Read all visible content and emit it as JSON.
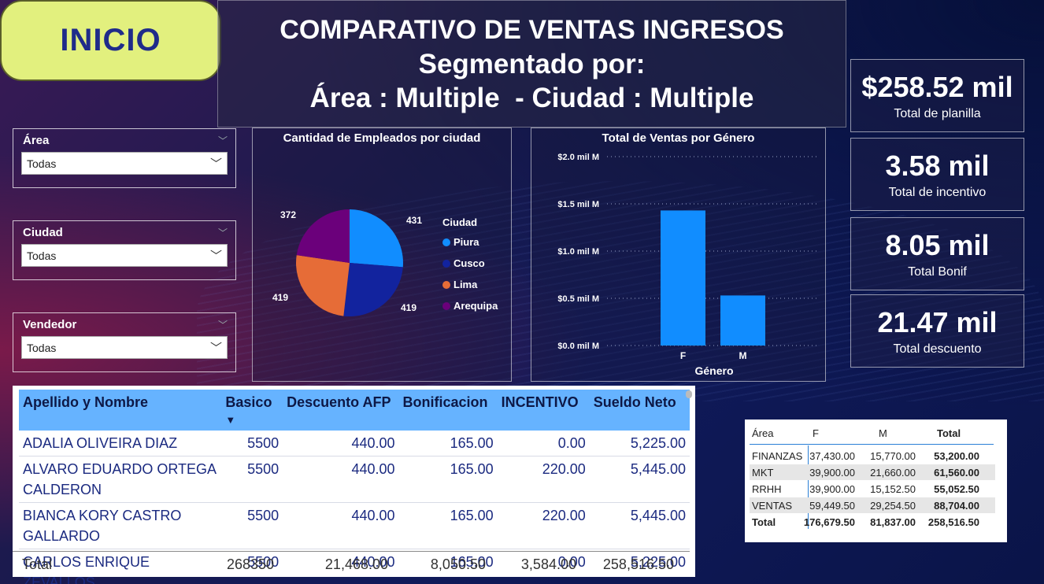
{
  "nav": {
    "home_label": "INICIO"
  },
  "header": {
    "line1": "COMPARATIVO DE VENTAS INGRESOS",
    "line2": "Segmentado por:",
    "line3": "Área : Multiple  - Ciudad : Multiple"
  },
  "filters": [
    {
      "label": "Área",
      "value": "Todas"
    },
    {
      "label": "Ciudad",
      "value": "Todas"
    },
    {
      "label": "Vendedor",
      "value": "Todas"
    }
  ],
  "kpis": [
    {
      "value": "$258.52 mil",
      "label": "Total de planilla"
    },
    {
      "value": "3.58 mil",
      "label": "Total de incentivo"
    },
    {
      "value": "8.05 mil",
      "label": "Total Bonif"
    },
    {
      "value": "21.47 mil",
      "label": "Total descuento"
    }
  ],
  "chart_data": [
    {
      "type": "pie",
      "title": "Cantidad de Empleados por ciudad",
      "legend_title": "Ciudad",
      "categories": [
        "Piura",
        "Cusco",
        "Lima",
        "Arequipa"
      ],
      "values": [
        431,
        419,
        419,
        372
      ],
      "colors": [
        "#118dff",
        "#12239e",
        "#e66c37",
        "#6b007b"
      ]
    },
    {
      "type": "bar",
      "title": "Total de Ventas por Género",
      "categories": [
        "F",
        "M"
      ],
      "values": [
        1.43,
        0.53
      ],
      "ylim": [
        0,
        2.0
      ],
      "yticks": [
        "$0.0 mil M",
        "$0.5 mil M",
        "$1.0 mil M",
        "$1.5 mil M",
        "$2.0 mil M"
      ],
      "xlabel": "Género",
      "color": "#118dff"
    }
  ],
  "employees_table": {
    "columns": [
      "Apellido y Nombre",
      "Basico",
      "Descuento AFP",
      "Bonificacion",
      "INCENTIVO",
      "Sueldo Neto"
    ],
    "sort_indicator": "▼",
    "rows": [
      [
        "ADALIA OLIVEIRA DIAZ",
        "5500",
        "440.00",
        "165.00",
        "0.00",
        "5,225.00"
      ],
      [
        "ALVARO EDUARDO ORTEGA CALDERON",
        "5500",
        "440.00",
        "165.00",
        "220.00",
        "5,445.00"
      ],
      [
        "BIANCA KORY CASTRO GALLARDO",
        "5500",
        "440.00",
        "165.00",
        "220.00",
        "5,445.00"
      ],
      [
        "CARLOS ENRIQUE ZEVALLOS",
        "5500",
        "440.00",
        "165.00",
        "0.00",
        "5,225.00"
      ]
    ],
    "total": [
      "Total",
      "268350",
      "21,468.00",
      "8,050.50",
      "3,584.00",
      "258,516.50"
    ]
  },
  "matrix": {
    "headers": [
      "Área",
      "F",
      "M",
      "Total"
    ],
    "rows": [
      [
        "FINANZAS",
        "37,430.00",
        "15,770.00",
        "53,200.00"
      ],
      [
        "MKT",
        "39,900.00",
        "21,660.00",
        "61,560.00"
      ],
      [
        "RRHH",
        "39,900.00",
        "15,152.50",
        "55,052.50"
      ],
      [
        "VENTAS",
        "59,449.50",
        "29,254.50",
        "88,704.00"
      ]
    ],
    "total": [
      "Total",
      "176,679.50",
      "81,837.00",
      "258,516.50"
    ]
  },
  "colors": {
    "accent": "#118dff",
    "home_button": "#e2f07e",
    "table_header": "#66b3ff"
  }
}
